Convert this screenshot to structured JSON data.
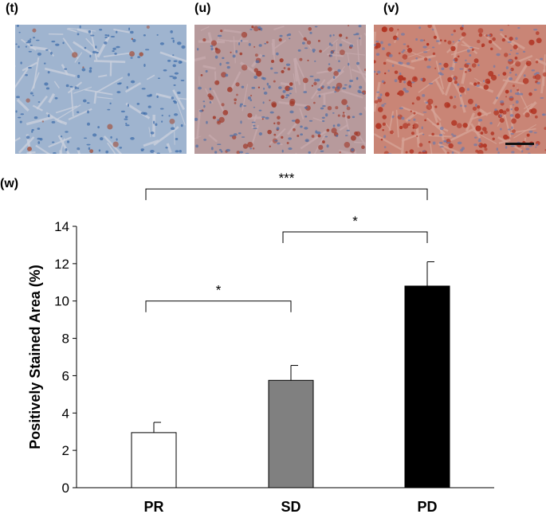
{
  "panels": {
    "t": "(t)",
    "u": "(u)",
    "v": "(v)",
    "w": "(w)"
  },
  "micrographs": [
    {
      "name": "t",
      "stain": "low",
      "base": "#9fb4cf",
      "tissue": "#c9cfdc",
      "nucleus": "#3a6aa8",
      "stain_color": "#a2523f"
    },
    {
      "name": "u",
      "stain": "medium",
      "base": "#b79a9c",
      "tissue": "#c6a9ad",
      "nucleus": "#4c6ea6",
      "stain_color": "#a0392a"
    },
    {
      "name": "v",
      "stain": "high",
      "base": "#c98576",
      "tissue": "#d6a396",
      "nucleus": "#6f79a8",
      "stain_color": "#b0301f"
    }
  ],
  "chart_data": {
    "type": "bar",
    "categories": [
      "PR",
      "SD",
      "PD"
    ],
    "values": [
      2.95,
      5.75,
      10.8
    ],
    "errors": [
      0.55,
      0.8,
      1.3
    ],
    "colors": [
      "#ffffff",
      "#808080",
      "#000000"
    ],
    "ylabel": "Positively Stained Area (%)",
    "ylim": [
      0,
      14
    ],
    "yticks": [
      0,
      2,
      4,
      6,
      8,
      10,
      12,
      14
    ],
    "grid": false,
    "significance": [
      {
        "from": 0,
        "to": 2,
        "label": "***",
        "level": 16.0
      },
      {
        "from": 1,
        "to": 2,
        "label": "*",
        "level": 13.7
      },
      {
        "from": 0,
        "to": 1,
        "label": "*",
        "level": 10.0
      }
    ]
  }
}
